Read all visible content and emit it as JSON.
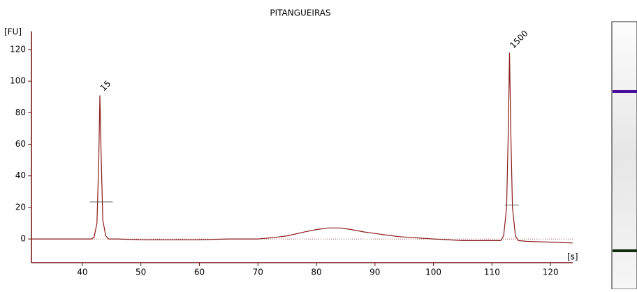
{
  "chart_data": {
    "type": "line",
    "title": "PITANGUEIRAS",
    "y_label": "[FU]",
    "x_label": "[s]",
    "x": [
      31.3,
      35,
      38,
      40,
      41.5,
      42,
      42.5,
      42.8,
      43,
      43.2,
      43.5,
      44,
      44.5,
      46,
      50,
      55,
      60,
      65,
      70,
      73,
      75,
      78,
      80,
      82,
      84,
      86,
      88,
      90,
      92,
      94,
      96,
      100,
      105,
      110,
      111.5,
      112,
      112.5,
      112.8,
      113,
      113.2,
      113.5,
      114,
      114.5,
      116,
      120,
      123.8
    ],
    "values": [
      0,
      0,
      0,
      0,
      0,
      1,
      10,
      50,
      91,
      55,
      12,
      2,
      0,
      0,
      -0.5,
      -0.5,
      -0.5,
      0,
      0,
      1,
      2,
      4.5,
      6,
      7,
      7,
      6,
      4.5,
      3.5,
      2.5,
      1.5,
      1,
      0,
      -1,
      -1,
      -1,
      2,
      20,
      70,
      118,
      70,
      20,
      2,
      -1,
      -1.5,
      -2,
      -2.5
    ],
    "color": "#8b1a1a",
    "peaks": [
      {
        "label": "15",
        "x": 43,
        "y": 91,
        "color": "#1a5e1a",
        "half_height": 23.5,
        "x_from": 41.3,
        "x_to": 45.2
      },
      {
        "label": "1500",
        "x": 113,
        "y": 118,
        "color": "#4b0f9e",
        "half_height": 21.5,
        "x_from": 112.2,
        "x_to": 114.6
      }
    ],
    "xlim": [
      31.3,
      123.8
    ],
    "ylim": [
      -15,
      131.5
    ],
    "xticks": [
      40,
      50,
      60,
      70,
      80,
      90,
      100,
      110,
      120
    ],
    "yticks": [
      0,
      20,
      40,
      60,
      80,
      100,
      120
    ]
  }
}
